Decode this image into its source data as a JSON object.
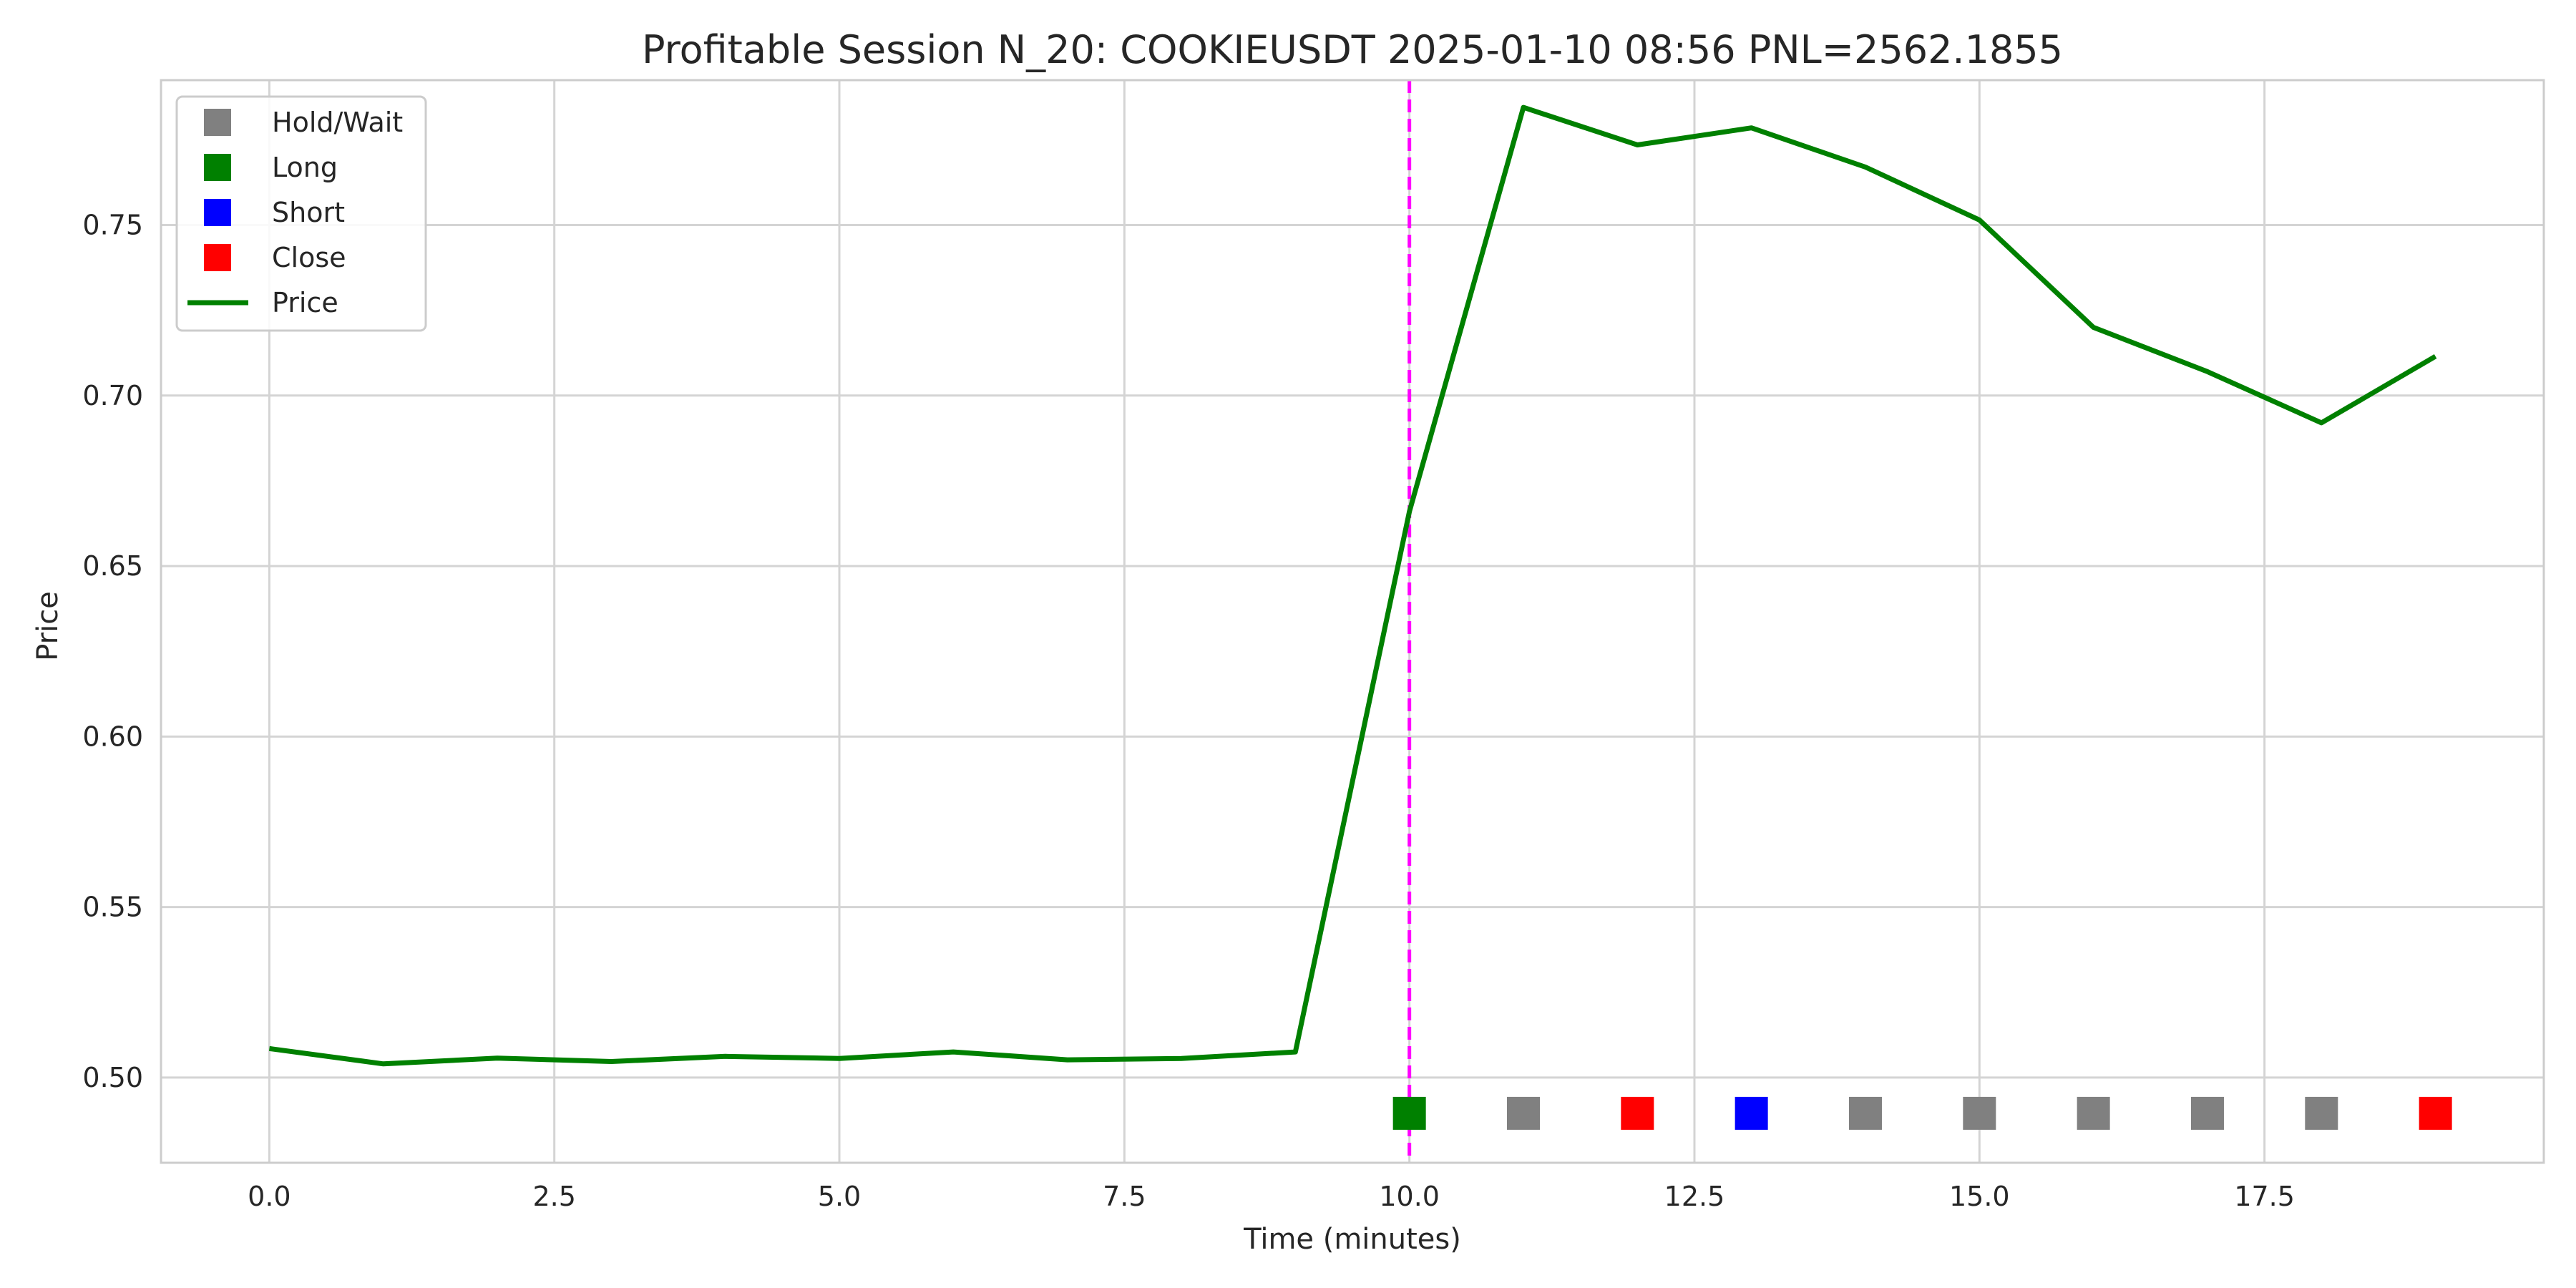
{
  "chart_data": {
    "type": "line",
    "title": "Profitable Session N_20: COOKIEUSDT 2025-01-10 08:56  PNL=2562.1855",
    "xlabel": "Time (minutes)",
    "ylabel": "Price",
    "xlim": [
      -0.95,
      19.95
    ],
    "ylim": [
      0.475,
      0.7925
    ],
    "grid": true,
    "legend_position": "top-left",
    "x_ticks": [
      0.0,
      2.5,
      5.0,
      7.5,
      10.0,
      12.5,
      15.0,
      17.5
    ],
    "x_tick_labels": [
      "0.0",
      "2.5",
      "5.0",
      "7.5",
      "10.0",
      "12.5",
      "15.0",
      "17.5"
    ],
    "y_ticks": [
      0.5,
      0.55,
      0.6,
      0.65,
      0.7,
      0.75
    ],
    "y_tick_labels": [
      "0.50",
      "0.55",
      "0.60",
      "0.65",
      "0.70",
      "0.75"
    ],
    "series": [
      {
        "name": "Price",
        "color": "#008000",
        "x": [
          0,
          1,
          2,
          3,
          4,
          5,
          6,
          7,
          8,
          9,
          10,
          11,
          12,
          13,
          14,
          15,
          16,
          17,
          18,
          19
        ],
        "values": [
          0.5085,
          0.504,
          0.5057,
          0.5047,
          0.5062,
          0.5056,
          0.5075,
          0.5052,
          0.5056,
          0.5075,
          0.666,
          0.7845,
          0.7735,
          0.7785,
          0.767,
          0.7515,
          0.72,
          0.707,
          0.692,
          0.7115
        ]
      }
    ],
    "actions": {
      "y": 0.4895,
      "points": [
        {
          "x": 10,
          "action": "Long"
        },
        {
          "x": 11,
          "action": "Hold/Wait"
        },
        {
          "x": 12,
          "action": "Close"
        },
        {
          "x": 13,
          "action": "Short"
        },
        {
          "x": 14,
          "action": "Hold/Wait"
        },
        {
          "x": 15,
          "action": "Hold/Wait"
        },
        {
          "x": 16,
          "action": "Hold/Wait"
        },
        {
          "x": 17,
          "action": "Hold/Wait"
        },
        {
          "x": 18,
          "action": "Hold/Wait"
        },
        {
          "x": 19,
          "action": "Close"
        }
      ]
    },
    "action_colors": {
      "Hold/Wait": "#808080",
      "Long": "#008000",
      "Short": "#0000ff",
      "Close": "#ff0000"
    },
    "vline": {
      "x": 10,
      "color": "#ff00ff",
      "style": "dashed"
    },
    "legend": [
      {
        "label": "Hold/Wait",
        "kind": "square",
        "color": "#808080"
      },
      {
        "label": "Long",
        "kind": "square",
        "color": "#008000"
      },
      {
        "label": "Short",
        "kind": "square",
        "color": "#0000ff"
      },
      {
        "label": "Close",
        "kind": "square",
        "color": "#ff0000"
      },
      {
        "label": "Price",
        "kind": "line",
        "color": "#008000"
      }
    ]
  }
}
